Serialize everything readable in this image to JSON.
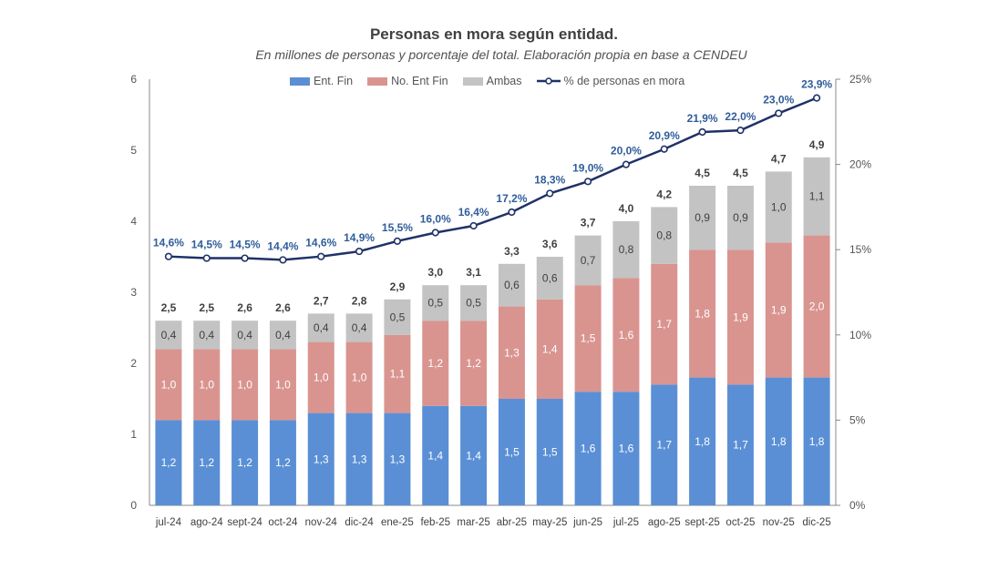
{
  "chart_data": {
    "type": "bar",
    "title": "Personas en mora según entidad.",
    "subtitle": "En millones de personas y porcentaje del total. Elaboración propia en base a CENDEU",
    "categories": [
      "jul-24",
      "ago-24",
      "sept-24",
      "oct-24",
      "nov-24",
      "dic-24",
      "ene-25",
      "feb-25",
      "mar-25",
      "abr-25",
      "may-25",
      "jun-25",
      "jul-25",
      "ago-25",
      "sept-25",
      "oct-25",
      "nov-25",
      "dic-25"
    ],
    "series": [
      {
        "name": "Ent. Fin",
        "type": "stacked-bar",
        "color": "#5a8fd5",
        "values": [
          1.2,
          1.2,
          1.2,
          1.2,
          1.3,
          1.3,
          1.3,
          1.4,
          1.4,
          1.5,
          1.5,
          1.6,
          1.6,
          1.7,
          1.8,
          1.7,
          1.8,
          1.8
        ],
        "labels": [
          "1,2",
          "1,2",
          "1,2",
          "1,2",
          "1,3",
          "1,3",
          "1,3",
          "1,4",
          "1,4",
          "1,5",
          "1,5",
          "1,6",
          "1,6",
          "1,7",
          "1,8",
          "1,7",
          "1,8",
          "1,8"
        ]
      },
      {
        "name": "No. Ent Fin",
        "type": "stacked-bar",
        "color": "#d99490",
        "values": [
          1.0,
          1.0,
          1.0,
          1.0,
          1.0,
          1.0,
          1.1,
          1.2,
          1.2,
          1.3,
          1.4,
          1.5,
          1.6,
          1.7,
          1.8,
          1.9,
          1.9,
          2.0
        ],
        "labels": [
          "1,0",
          "1,0",
          "1,0",
          "1,0",
          "1,0",
          "1,0",
          "1,1",
          "1,2",
          "1,2",
          "1,3",
          "1,4",
          "1,5",
          "1,6",
          "1,7",
          "1,8",
          "1,9",
          "1,9",
          "2,0"
        ]
      },
      {
        "name": "Ambas",
        "type": "stacked-bar",
        "color": "#c3c3c3",
        "values": [
          0.4,
          0.4,
          0.4,
          0.4,
          0.4,
          0.4,
          0.5,
          0.5,
          0.5,
          0.6,
          0.6,
          0.7,
          0.8,
          0.8,
          0.9,
          0.9,
          1.0,
          1.1
        ],
        "labels": [
          "0,4",
          "0,4",
          "0,4",
          "0,4",
          "0,4",
          "0,4",
          "0,5",
          "0,5",
          "0,5",
          "0,6",
          "0,6",
          "0,7",
          "0,8",
          "0,8",
          "0,9",
          "0,9",
          "1,0",
          "1,1"
        ]
      },
      {
        "name": "% de personas en mora",
        "type": "line",
        "axis": "right",
        "color": "#1f3168",
        "values": [
          14.6,
          14.5,
          14.5,
          14.4,
          14.6,
          14.9,
          15.5,
          16.0,
          16.4,
          17.2,
          18.3,
          19.0,
          20.0,
          20.9,
          21.9,
          22.0,
          23.0,
          23.9
        ],
        "labels": [
          "14,6%",
          "14,5%",
          "14,5%",
          "14,4%",
          "14,6%",
          "14,9%",
          "15,5%",
          "16,0%",
          "16,4%",
          "17,2%",
          "18,3%",
          "19,0%",
          "20,0%",
          "20,9%",
          "21,9%",
          "22,0%",
          "23,0%",
          "23,9%"
        ]
      }
    ],
    "totals": [
      2.5,
      2.5,
      2.6,
      2.6,
      2.7,
      2.8,
      2.9,
      3.0,
      3.1,
      3.3,
      3.6,
      3.7,
      4.0,
      4.2,
      4.5,
      4.5,
      4.7,
      4.9
    ],
    "total_labels": [
      "2,5",
      "2,5",
      "2,6",
      "2,6",
      "2,7",
      "2,8",
      "2,9",
      "3,0",
      "3,1",
      "3,3",
      "3,6",
      "3,7",
      "4,0",
      "4,2",
      "4,5",
      "4,5",
      "4,7",
      "4,9"
    ],
    "ylim": [
      0,
      6
    ],
    "yticks": [
      "0",
      "1",
      "2",
      "3",
      "4",
      "5",
      "6"
    ],
    "y2lim": [
      0,
      25
    ],
    "y2ticks": [
      "0%",
      "5%",
      "10%",
      "15%",
      "20%",
      "25%"
    ],
    "grid": false,
    "legend": "top",
    "pct_label_color": "#2f5d9b",
    "total_label_color": "#404040"
  }
}
